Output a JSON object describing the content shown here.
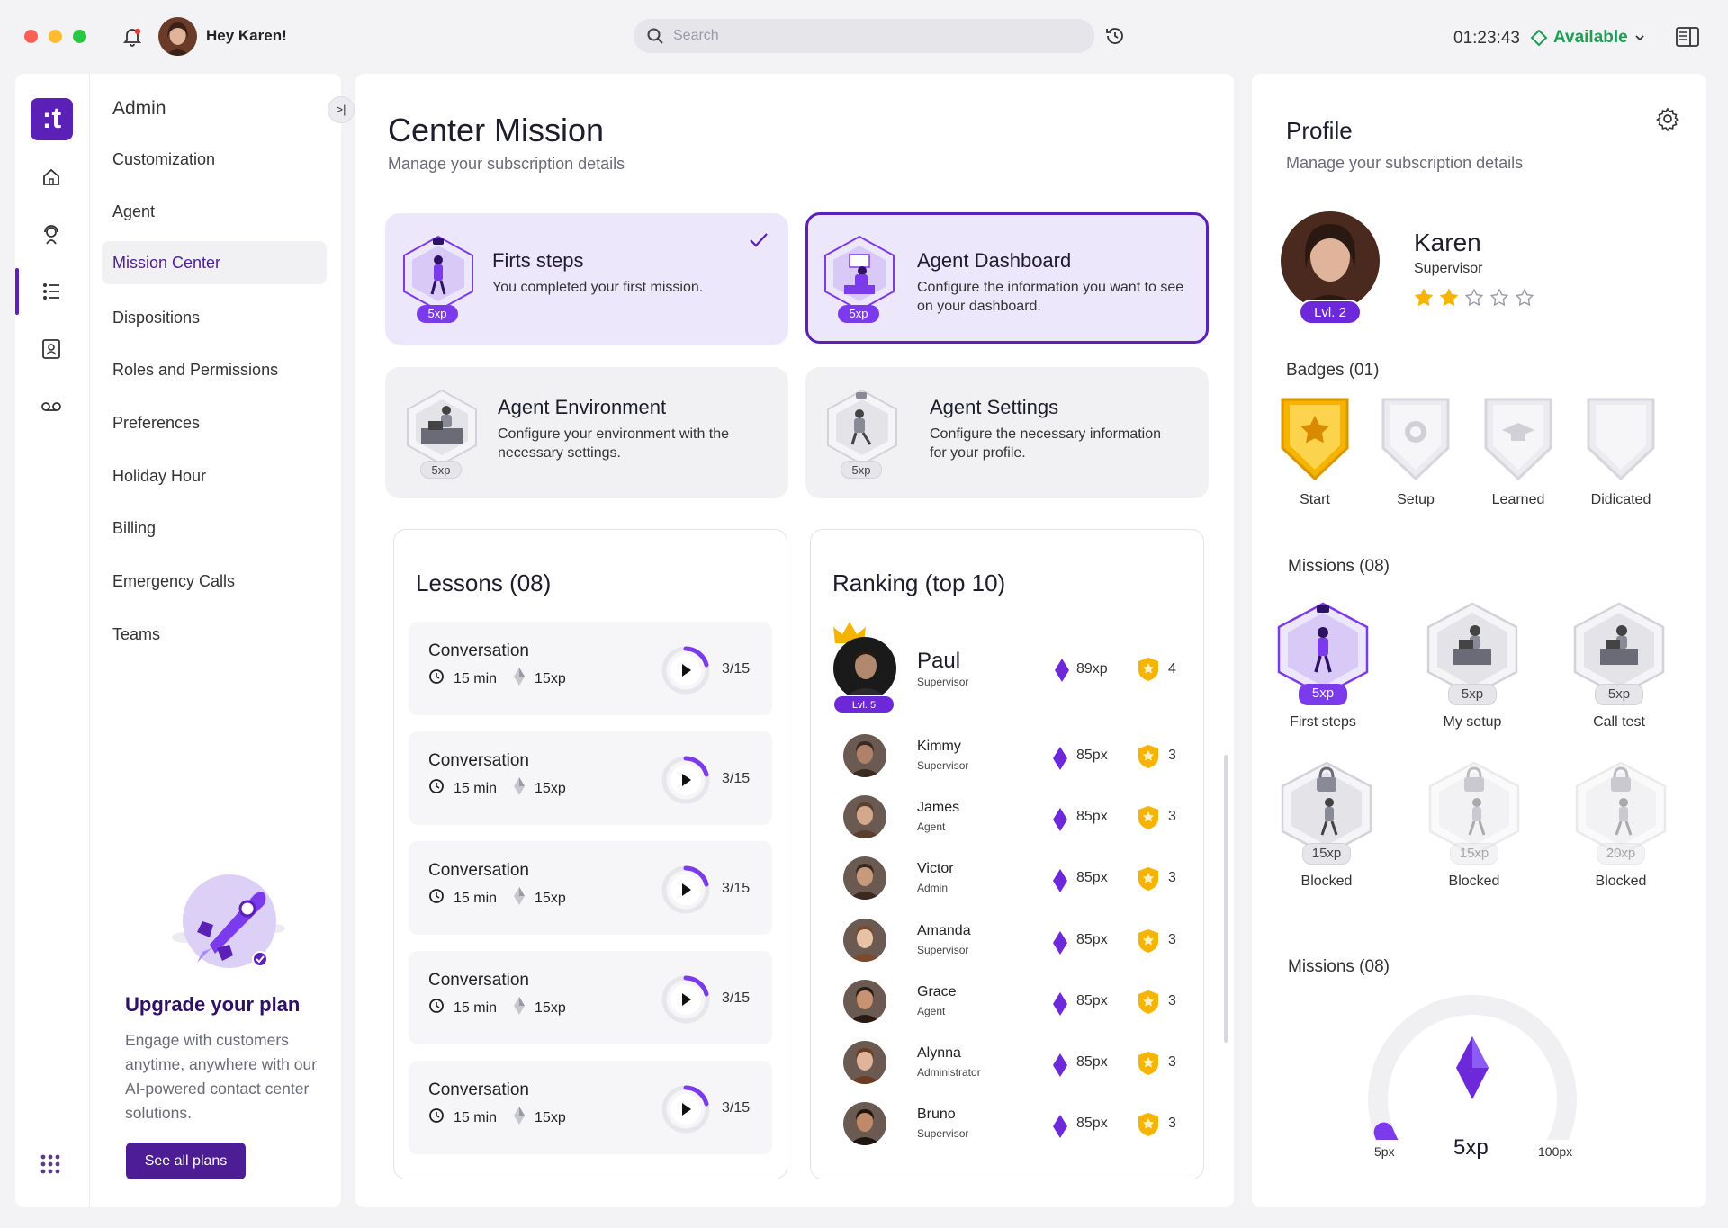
{
  "colors": {
    "brand": "#5b21b6",
    "accent": "#7c3aed",
    "available": "#1f9d55",
    "gold": "#f5b400"
  },
  "topbar": {
    "greeting": "Hey Karen!",
    "search_placeholder": "Search",
    "time": "01:23:43",
    "status": "Available"
  },
  "rail": {
    "logo": ":t",
    "icons": [
      "home-icon",
      "support-agent-icon",
      "mission-list-icon",
      "contacts-icon",
      "voicemail-icon",
      "apps-grid-icon"
    ]
  },
  "submenu": {
    "title": "Admin",
    "items": [
      "Customization",
      "Agent",
      "Mission Center",
      "Dispositions",
      "Roles and Permissions",
      "Preferences",
      "Holiday Hour",
      "Billing",
      "Emergency Calls",
      "Teams"
    ],
    "active": "Mission Center",
    "upgrade": {
      "title": "Upgrade your plan",
      "text": "Engage with customers anytime, anywhere with our AI-powered contact center solutions.",
      "button": "See all plans"
    }
  },
  "center": {
    "title": "Center Mission",
    "subtitle": "Manage your subscription details",
    "mission_cards": [
      {
        "title": "Firts steps",
        "desc": "You completed your first mission.",
        "xp": "5xp",
        "state": "done"
      },
      {
        "title": "Agent Dashboard",
        "desc": "Configure the information you want to see on your dashboard.",
        "xp": "5xp",
        "state": "active"
      },
      {
        "title": "Agent Environment",
        "desc": "Configure your environment with the necessary settings.",
        "xp": "5xp",
        "state": "locked"
      },
      {
        "title": "Agent Settings",
        "desc": "Configure the necessary information for your profile.",
        "xp": "5xp",
        "state": "locked"
      }
    ],
    "lessons": {
      "title": "Lessons (08)",
      "items": [
        {
          "name": "Conversation",
          "duration": "15 min",
          "xp": "15xp",
          "progress": "3/15"
        },
        {
          "name": "Conversation",
          "duration": "15 min",
          "xp": "15xp",
          "progress": "3/15"
        },
        {
          "name": "Conversation",
          "duration": "15 min",
          "xp": "15xp",
          "progress": "3/15"
        },
        {
          "name": "Conversation",
          "duration": "15 min",
          "xp": "15xp",
          "progress": "3/15"
        },
        {
          "name": "Conversation",
          "duration": "15 min",
          "xp": "15xp",
          "progress": "3/15"
        }
      ]
    },
    "ranking": {
      "title": "Ranking (top 10)",
      "leader": {
        "name": "Paul",
        "role": "Supervisor",
        "level": "Lvl. 5",
        "xp": "89xp",
        "badges": "4"
      },
      "rows": [
        {
          "name": "Kimmy",
          "role": "Supervisor",
          "xp": "85px",
          "badges": "3"
        },
        {
          "name": "James",
          "role": "Agent",
          "xp": "85px",
          "badges": "3"
        },
        {
          "name": "Victor",
          "role": "Admin",
          "xp": "85px",
          "badges": "3"
        },
        {
          "name": "Amanda",
          "role": "Supervisor",
          "xp": "85px",
          "badges": "3"
        },
        {
          "name": "Grace",
          "role": "Agent",
          "xp": "85px",
          "badges": "3"
        },
        {
          "name": "Alynna",
          "role": "Administrator",
          "xp": "85px",
          "badges": "3"
        },
        {
          "name": "Bruno",
          "role": "Supervisor",
          "xp": "85px",
          "badges": "3"
        }
      ]
    }
  },
  "profile": {
    "title": "Profile",
    "subtitle": "Manage your subscription details",
    "name": "Karen",
    "role": "Supervisor",
    "level": "Lvl. 2",
    "rating": 2,
    "rating_max": 5,
    "badges_label": "Badges (01)",
    "badges": [
      {
        "label": "Start",
        "earned": true
      },
      {
        "label": "Setup",
        "earned": false
      },
      {
        "label": "Learned",
        "earned": false
      },
      {
        "label": "Didicated",
        "earned": false
      }
    ],
    "missions_label": "Missions (08)",
    "missions": [
      {
        "label": "First steps",
        "xp": "5xp",
        "state": "done"
      },
      {
        "label": "My setup",
        "xp": "5xp",
        "state": "open"
      },
      {
        "label": "Call test",
        "xp": "5xp",
        "state": "open"
      },
      {
        "label": "Blocked",
        "xp": "15xp",
        "state": "blocked"
      },
      {
        "label": "Blocked",
        "xp": "15xp",
        "state": "blocked-faded"
      },
      {
        "label": "Blocked",
        "xp": "20xp",
        "state": "blocked-faded"
      }
    ],
    "gauge_label": "Missions (08)",
    "gauge": {
      "min": "5px",
      "value": "5xp",
      "max": "100px",
      "fraction": 0.04
    }
  }
}
